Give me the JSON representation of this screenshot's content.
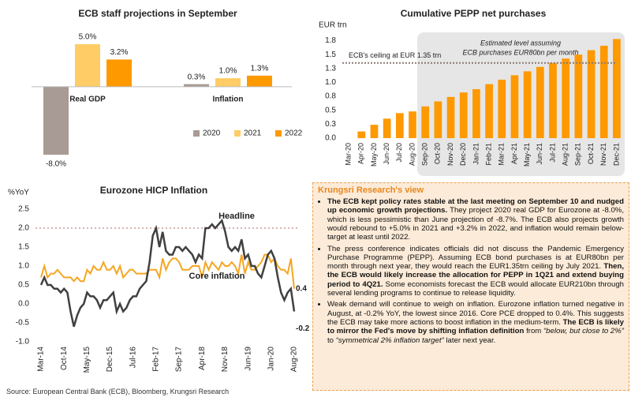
{
  "chart_data": [
    {
      "type": "bar",
      "title": "ECB staff projections in September",
      "categories": [
        "Real GDP",
        "Inflation"
      ],
      "series": [
        {
          "name": "2020",
          "color": "#a89a94",
          "values": [
            -8.0,
            0.3
          ],
          "value_labels": [
            "-8.0%",
            "0.3%"
          ]
        },
        {
          "name": "2021",
          "color": "#ffcc66",
          "values": [
            5.0,
            1.0
          ],
          "value_labels": [
            "5.0%",
            "1.0%"
          ]
        },
        {
          "name": "2022",
          "color": "#ff9900",
          "values": [
            3.2,
            1.3
          ],
          "value_labels": [
            "3.2%",
            "1.3%"
          ]
        }
      ]
    },
    {
      "type": "bar",
      "title": "Cumulative PEPP net purchases",
      "y_label": "EUR trn",
      "color": "#ff9900",
      "categories": [
        "Mar-20",
        "Apr-20",
        "May-20",
        "Jun-20",
        "Jul-20",
        "Aug-20",
        "Sep-20",
        "Oct-20",
        "Nov-20",
        "Dec-20",
        "Jan-21",
        "Feb-21",
        "Mar-21",
        "Apr-21",
        "May-21",
        "Jun-21",
        "Jul-21",
        "Aug-21",
        "Sep-21",
        "Oct-21",
        "Nov-21",
        "Dec-21"
      ],
      "values": [
        0.0,
        0.12,
        0.24,
        0.35,
        0.45,
        0.48,
        0.57,
        0.66,
        0.74,
        0.82,
        0.88,
        0.97,
        1.05,
        1.13,
        1.2,
        1.28,
        1.35,
        1.43,
        1.5,
        1.58,
        1.66,
        1.78
      ],
      "ylim": [
        0,
        1.9
      ],
      "yticks": [
        {
          "value": 0,
          "label": "0.0"
        },
        {
          "value": 0.25,
          "label": "0.3"
        },
        0.5,
        {
          "value": 0.75,
          "label": "0.8"
        },
        {
          "value": 1,
          "label": "1.0"
        },
        {
          "value": 1.25,
          "label": "1.3"
        },
        1.5,
        {
          "value": 1.75,
          "label": "1.8"
        }
      ],
      "grid": false,
      "reference_line": {
        "value": 1.35,
        "label": "ECB's ceiling at EUR 1.35 trn",
        "color": "#8a7a74"
      },
      "shaded_region": {
        "from": "Sep-20",
        "to": "Dec-21",
        "label": [
          "Estimated level assuming",
          "ECB purchases EUR80bn per month"
        ]
      }
    },
    {
      "type": "line",
      "title": "Eurozone HICP Inflation",
      "y_label": "%YoY",
      "categories": [
        "Mar-14",
        null,
        null,
        null,
        null,
        null,
        null,
        "Oct-14",
        null,
        null,
        null,
        null,
        null,
        null,
        "May-15",
        null,
        null,
        null,
        null,
        null,
        null,
        "Dec-15",
        null,
        null,
        null,
        null,
        null,
        null,
        "Jul-16",
        null,
        null,
        null,
        null,
        null,
        null,
        "Feb-17",
        null,
        null,
        null,
        null,
        null,
        null,
        "Sep-17",
        null,
        null,
        null,
        null,
        null,
        null,
        "Apr-18",
        null,
        null,
        null,
        null,
        null,
        null,
        "Nov-18",
        null,
        null,
        null,
        null,
        null,
        null,
        "Jun-19",
        null,
        null,
        null,
        null,
        null,
        null,
        "Jan-20",
        null,
        null,
        null,
        null,
        null,
        null,
        "Aug-20"
      ],
      "series": [
        {
          "name": "Headline",
          "color": "#404040",
          "values": [
            0.5,
            0.7,
            0.5,
            0.5,
            0.4,
            0.4,
            0.3,
            0.4,
            0.3,
            -0.2,
            -0.6,
            -0.3,
            -0.1,
            0.0,
            0.3,
            0.2,
            0.2,
            0.1,
            -0.1,
            0.1,
            0.1,
            0.2,
            0.3,
            -0.2,
            0.0,
            -0.2,
            -0.1,
            0.1,
            0.2,
            0.2,
            0.4,
            0.5,
            0.6,
            1.1,
            1.8,
            2.0,
            1.5,
            1.9,
            1.4,
            1.3,
            1.3,
            1.5,
            1.5,
            1.4,
            1.5,
            1.4,
            1.3,
            1.1,
            1.3,
            1.2,
            2.0,
            2.0,
            2.1,
            2.0,
            2.1,
            2.2,
            1.9,
            1.5,
            1.4,
            1.5,
            1.4,
            1.7,
            1.2,
            1.3,
            1.0,
            1.0,
            0.8,
            0.7,
            1.0,
            1.3,
            1.4,
            1.2,
            0.7,
            0.3,
            0.1,
            0.3,
            0.4,
            -0.2
          ]
        },
        {
          "name": "Core inflation",
          "color": "#f5a623",
          "values": [
            0.7,
            1.0,
            0.7,
            0.8,
            0.8,
            0.9,
            0.8,
            0.7,
            0.7,
            0.7,
            0.6,
            0.7,
            0.6,
            0.6,
            0.9,
            0.8,
            1.0,
            0.9,
            0.9,
            1.1,
            0.9,
            0.9,
            1.0,
            0.8,
            1.0,
            0.7,
            0.8,
            0.9,
            0.9,
            0.8,
            0.8,
            0.8,
            0.8,
            0.9,
            0.9,
            0.9,
            0.7,
            1.2,
            0.9,
            1.1,
            1.2,
            1.2,
            1.1,
            0.9,
            0.9,
            0.9,
            1.0,
            1.0,
            1.0,
            0.7,
            1.1,
            0.9,
            1.1,
            1.0,
            0.9,
            1.1,
            1.0,
            1.0,
            1.1,
            1.0,
            0.8,
            1.3,
            0.8,
            1.1,
            0.9,
            0.9,
            1.0,
            1.1,
            1.3,
            1.3,
            1.1,
            1.2,
            1.0,
            0.9,
            0.9,
            0.8,
            1.2,
            0.4
          ]
        }
      ],
      "ylim": [
        -1,
        2.5
      ],
      "yticks": [
        {
          "value": -1,
          "label": "-1.0"
        },
        -0.5,
        {
          "value": 0,
          "label": "0.0"
        },
        0.5,
        {
          "value": 1,
          "label": "1.0"
        },
        1.5,
        {
          "value": 2,
          "label": "2.0"
        },
        2.5
      ],
      "grid": false,
      "reference_line": {
        "value": 2,
        "color": "#c99a9a"
      }
    }
  ],
  "view": {
    "title": "Krungsri Research's view",
    "bullets": [
      [
        {
          "text": "The ECB kept policy rates stable at the last meeting on September 10 and nudged up economic growth projections.",
          "style": "bold"
        },
        {
          "text": " They project 2020 real GDP for Eurozone at -8.0%, which is less pessimistic than June projection of -8.7%. The ECB also projects growth would rebound to +5.0% in 2021 and +3.2% in 2022, and inflation would remain below-target at least until 2022.",
          "style": "normal"
        }
      ],
      [
        {
          "text": "The press conference indicates officials did not discuss the Pandemic Emergency Purchase Programme (PEPP). Assuming ECB bond purchases is at EUR80bn per month through next year, they would reach the EUR1.35trn ceiling by July 2021. ",
          "style": "normal"
        },
        {
          "text": "Then, the ECB would likely increase the allocation for PEPP in 1Q21 and extend buying period to 4Q21.",
          "style": "bold"
        },
        {
          "text": " Some economists forecast the ECB would allocate EUR210bn through several lending programs to continue to release liquidity.",
          "style": "normal"
        }
      ],
      [
        {
          "text": "Weak demand will continue to weigh on inflation. Eurozone inflation turned negative in August, at -0.2% YoY, the lowest since 2016. Core PCE dropped to 0.4%. This suggests the ECB may take more actions to boost inflation in the medium-term. ",
          "style": "normal"
        },
        {
          "text": "The ECB is likely to mirror the Fed's move by shifting inflation definition",
          "style": "bold"
        },
        {
          "text": " from ",
          "style": "normal"
        },
        {
          "text": "“below, but close to 2%”",
          "style": "italic"
        },
        {
          "text": " to ",
          "style": "normal"
        },
        {
          "text": "“symmetrical 2% inflation target”",
          "style": "italic"
        },
        {
          "text": " later next year.",
          "style": "normal"
        }
      ]
    ]
  },
  "source": "Source: European Central Bank (ECB), Bloomberg, Krungsri Research"
}
